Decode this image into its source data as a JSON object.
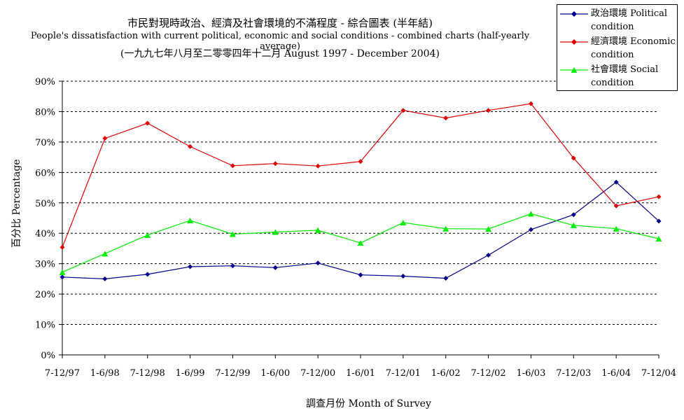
{
  "chart_data": {
    "type": "line",
    "title": "市民對現時政治、經濟及社會環境的不滿程度 - 綜合圖表 (半年結)",
    "subtitle": "People's dissatisfaction with current political, economic and social conditions - combined charts  (half-yearly average)",
    "subtitle2": "(一九九七年八月至二零零四年十二月 August 1997 - December 2004)",
    "xlabel": "調查月份 Month of Survey",
    "ylabel": "百分比 Percentage",
    "ylim": [
      0,
      90
    ],
    "yticks": [
      "0%",
      "10%",
      "20%",
      "30%",
      "40%",
      "50%",
      "60%",
      "70%",
      "80%",
      "90%"
    ],
    "grid": true,
    "legend_position": "top-right",
    "categories": [
      "7-12/97",
      "1-6/98",
      "7-12/98",
      "1-6/99",
      "7-12/99",
      "1-6/00",
      "7-12/00",
      "1-6/01",
      "7-12/01",
      "1-6/02",
      "7-12/02",
      "1-6/03",
      "7-12/03",
      "1-6/04",
      "7-12/04"
    ],
    "series": [
      {
        "name": "政治環境 Political condition",
        "color": "#00008B",
        "marker": "diamond",
        "values": [
          25.6,
          25.0,
          26.5,
          29.0,
          29.3,
          28.7,
          30.2,
          26.3,
          25.9,
          25.2,
          32.8,
          41.2,
          46.1,
          56.8,
          44.0
        ]
      },
      {
        "name": "經濟環境 Economic condition",
        "color": "#E00000",
        "marker": "diamond",
        "values": [
          35.4,
          71.2,
          76.2,
          68.5,
          62.2,
          62.9,
          62.1,
          63.6,
          80.4,
          77.9,
          80.4,
          82.6,
          64.7,
          49.0,
          52.0
        ]
      },
      {
        "name": "社會環境 Social condition",
        "color": "#00EE00",
        "marker": "triangle",
        "values": [
          27.2,
          33.3,
          39.4,
          44.2,
          39.7,
          40.4,
          41.0,
          36.8,
          43.5,
          41.5,
          41.4,
          46.4,
          42.6,
          41.5,
          38.2
        ]
      }
    ]
  }
}
